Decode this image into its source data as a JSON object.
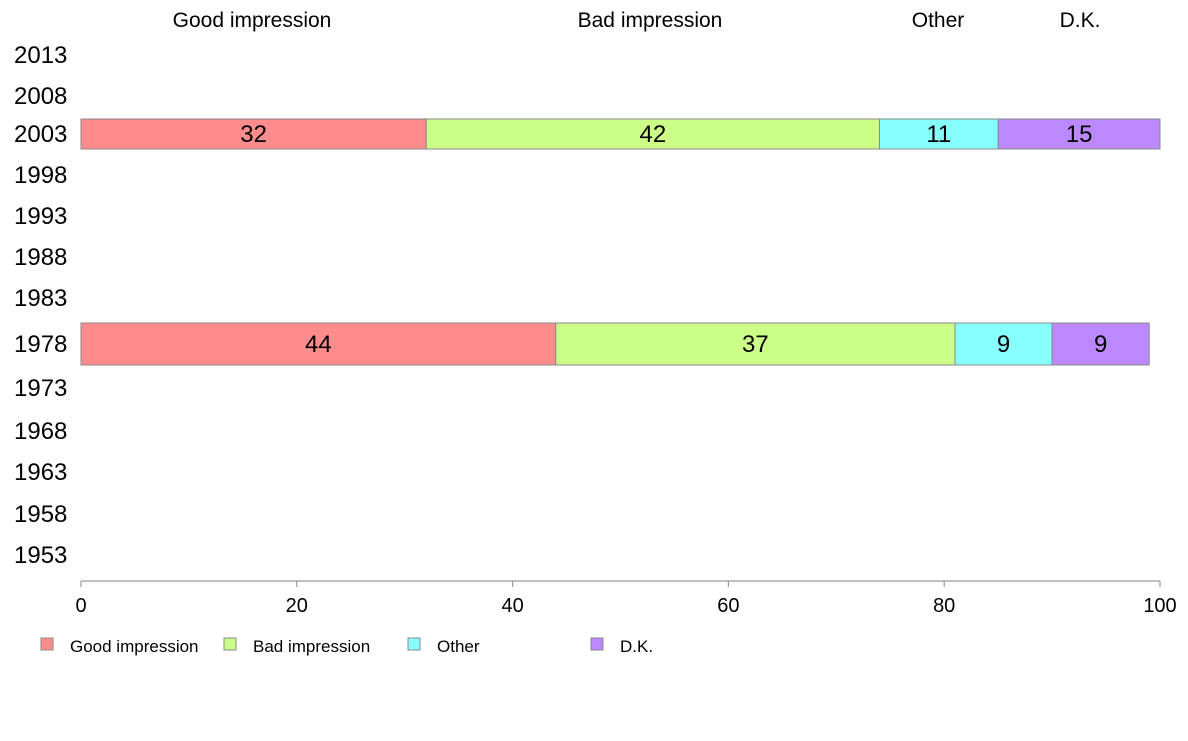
{
  "chart_data": {
    "type": "bar",
    "orientation": "horizontal",
    "stacked": true,
    "title": "",
    "xlabel": "",
    "ylabel": "",
    "xlim": [
      0,
      100
    ],
    "x_ticks": [
      0,
      20,
      40,
      60,
      80,
      100
    ],
    "grid": false,
    "legend_position": "bottom-left",
    "categories": [
      "2013",
      "2008",
      "2003",
      "1998",
      "1993",
      "1988",
      "1983",
      "1978",
      "1973",
      "1968",
      "1963",
      "1958",
      "1953"
    ],
    "header_labels": [
      "Good impression",
      "Bad impression",
      "Other",
      "D.K."
    ],
    "series": [
      {
        "name": "Good impression",
        "color": "#ff8c8c",
        "values": [
          null,
          null,
          32,
          null,
          null,
          null,
          null,
          44,
          null,
          null,
          null,
          null,
          null
        ]
      },
      {
        "name": "Bad impression",
        "color": "#ccff88",
        "values": [
          null,
          null,
          42,
          null,
          null,
          null,
          null,
          37,
          null,
          null,
          null,
          null,
          null
        ]
      },
      {
        "name": "Other",
        "color": "#88ffff",
        "values": [
          null,
          null,
          11,
          null,
          null,
          null,
          null,
          9,
          null,
          null,
          null,
          null,
          null
        ]
      },
      {
        "name": "D.K.",
        "color": "#bb88ff",
        "values": [
          null,
          null,
          15,
          null,
          null,
          null,
          null,
          9,
          null,
          null,
          null,
          null,
          null
        ]
      }
    ]
  }
}
